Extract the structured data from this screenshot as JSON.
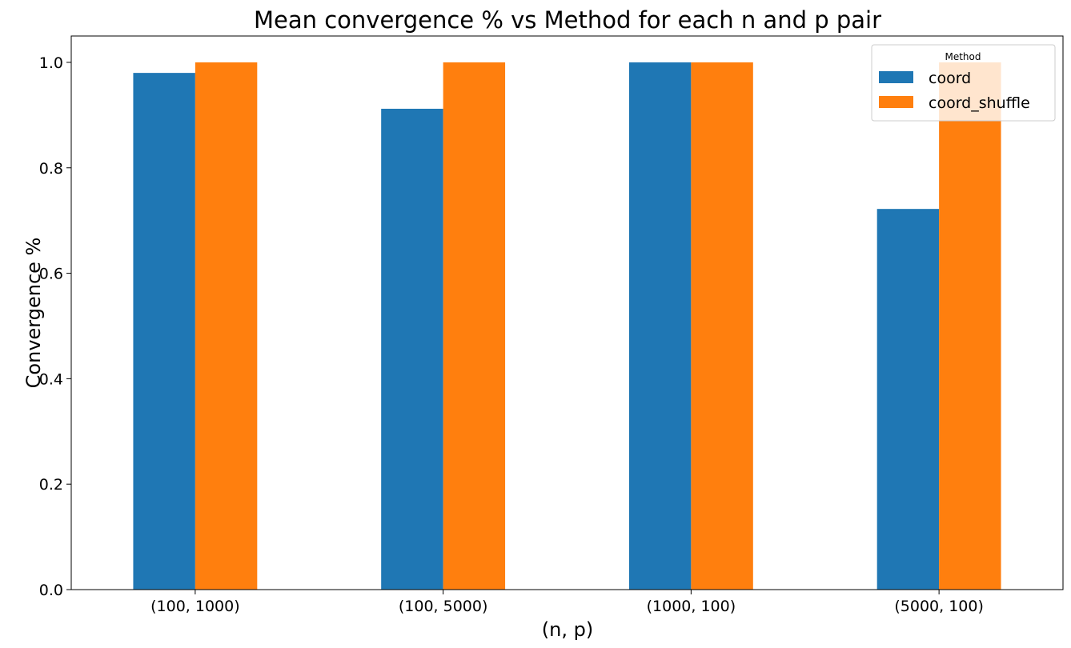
{
  "chart_data": {
    "type": "bar",
    "title": "Mean convergence % vs Method for each n and p pair",
    "xlabel": "(n, p)",
    "ylabel": "Convergence %",
    "categories": [
      "(100, 1000)",
      "(100, 5000)",
      "(1000, 100)",
      "(5000, 100)"
    ],
    "series": [
      {
        "name": "coord",
        "color": "#1f77b4",
        "values": [
          0.98,
          0.912,
          1.0,
          0.722
        ]
      },
      {
        "name": "coord_shuffle",
        "color": "#ff7f0e",
        "values": [
          1.0,
          1.0,
          1.0,
          1.0
        ]
      }
    ],
    "ylim": [
      0,
      1.05
    ],
    "yticks": [
      0.0,
      0.2,
      0.4,
      0.6,
      0.8,
      1.0
    ],
    "ytick_labels": [
      "0.0",
      "0.2",
      "0.4",
      "0.6",
      "0.8",
      "1.0"
    ],
    "grid": false,
    "legend": {
      "title": "Method",
      "placement": "top-right"
    }
  }
}
